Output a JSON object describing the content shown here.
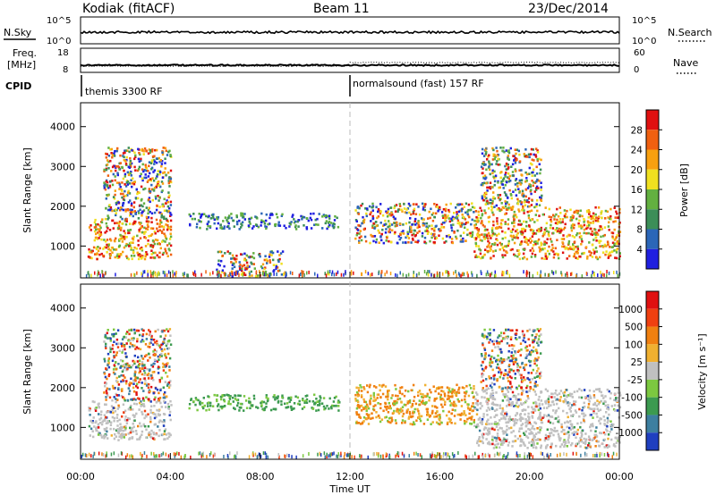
{
  "header": {
    "station": "Kodiak (fitACF)",
    "beam": "Beam 11",
    "date": "23/Dec/2014"
  },
  "top_panels": {
    "nsky_label": "N.Sky",
    "nsky_ticks": [
      "10^5",
      "10^0"
    ],
    "nsearch_label": "N.Search",
    "nsearch_ticks": [
      "10^5",
      "10^0"
    ],
    "freq_label_line1": "Freq.",
    "freq_label_line2": "[MHz]",
    "freq_ticks": [
      "18",
      "8"
    ],
    "nave_label": "Nave",
    "nave_ticks": [
      "60",
      "0"
    ],
    "cpid_label": "CPID",
    "cpid_segments": [
      {
        "label": "themis 3300 RF",
        "start": "00:00",
        "end": "12:00"
      },
      {
        "label": "normalsound (fast) 157 RF",
        "start": "12:00",
        "end": "24:00"
      }
    ]
  },
  "chart_data": [
    {
      "type": "heatmap",
      "name": "power",
      "ylabel": "Slant Range [km]",
      "ylim": [
        200,
        4600
      ],
      "yticks": [
        "1000",
        "2000",
        "3000",
        "4000"
      ],
      "colorbar_label": "Power [dB]",
      "colorbar_ticks": [
        "4",
        "8",
        "12",
        "16",
        "20",
        "24",
        "28"
      ],
      "colors": [
        "#1f1fe0",
        "#2b66b8",
        "#3c8e58",
        "#63b040",
        "#f0e020",
        "#f8a010",
        "#f06010",
        "#e01010"
      ],
      "scatter_regions": [
        {
          "t0": 0.3,
          "t1": 4.0,
          "r0": 700,
          "r1": 1700,
          "level": "high"
        },
        {
          "t0": 1.0,
          "t1": 4.0,
          "r0": 1700,
          "r1": 3500,
          "level": "mixed"
        },
        {
          "t0": 4.8,
          "t1": 11.5,
          "r0": 1450,
          "r1": 1850,
          "level": "low"
        },
        {
          "t0": 6.0,
          "t1": 9.0,
          "r0": 250,
          "r1": 900,
          "level": "mixed"
        },
        {
          "t0": 12.2,
          "t1": 17.5,
          "r0": 1100,
          "r1": 2100,
          "level": "mixed"
        },
        {
          "t0": 17.5,
          "t1": 24.0,
          "r0": 700,
          "r1": 2000,
          "level": "high"
        },
        {
          "t0": 17.8,
          "t1": 20.5,
          "r0": 2000,
          "r1": 3500,
          "level": "mixed"
        }
      ]
    },
    {
      "type": "heatmap",
      "name": "velocity",
      "ylabel": "Slant Range [km]",
      "ylim": [
        200,
        4600
      ],
      "yticks": [
        "1000",
        "2000",
        "3000",
        "4000"
      ],
      "colorbar_label": "Velocity [m s⁻¹]",
      "colorbar_ticks": [
        "1000",
        "500",
        "100",
        "25",
        "-25",
        "-100",
        "-500",
        "-1000"
      ],
      "colors": [
        "#1f3fc0",
        "#3d7fa0",
        "#3c9a50",
        "#7cc840",
        "#c0c0c0",
        "#f0b030",
        "#f08010",
        "#f04010",
        "#e01010"
      ],
      "scatter_regions": [
        {
          "t0": 0.3,
          "t1": 4.0,
          "r0": 700,
          "r1": 1700,
          "level": "gray"
        },
        {
          "t0": 1.0,
          "t1": 4.0,
          "r0": 1700,
          "r1": 3500,
          "level": "mixed"
        },
        {
          "t0": 4.8,
          "t1": 11.5,
          "r0": 1450,
          "r1": 1850,
          "level": "green"
        },
        {
          "t0": 12.2,
          "t1": 17.5,
          "r0": 1100,
          "r1": 2100,
          "level": "orange"
        },
        {
          "t0": 17.5,
          "t1": 24.0,
          "r0": 500,
          "r1": 2000,
          "level": "gray"
        },
        {
          "t0": 17.8,
          "t1": 20.5,
          "r0": 2000,
          "r1": 3500,
          "level": "mixed"
        }
      ]
    }
  ],
  "x_axis": {
    "label": "Time UT",
    "ticks": [
      "00:00",
      "04:00",
      "08:00",
      "12:00",
      "16:00",
      "20:00",
      "00:00"
    ]
  }
}
